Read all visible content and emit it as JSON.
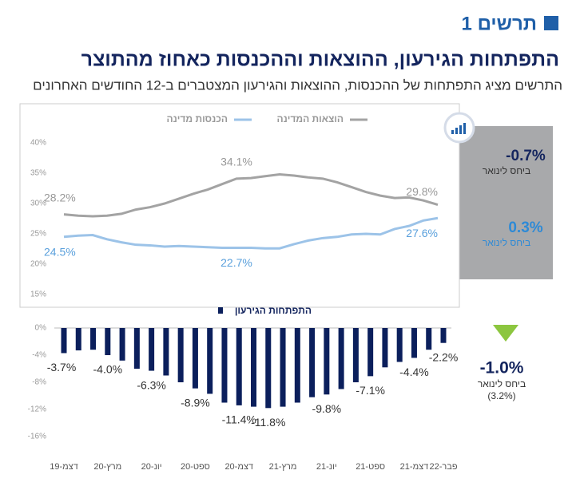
{
  "header": {
    "label": "תרשים 1",
    "title": "התפתחות הגירעון, ההוצאות וההכנסות כאחוז מהתוצר",
    "subtitle": "התרשים מציג התפתחות של ההכנסות, ההוצאות והגירעון המצטברים ב-12 החודשים האחרונים"
  },
  "side": {
    "expense_change": "-0.7%",
    "expense_note": "ביחס לינואר",
    "revenue_change": "0.3%",
    "revenue_note": "ביחס לינואר",
    "deficit_change": "-1.0%",
    "deficit_note": "ביחס לינואר",
    "deficit_prev": "(3.2%)"
  },
  "chart_data": [
    {
      "type": "line",
      "ylim": [
        15,
        40
      ],
      "yticks": [
        {
          "value": 15,
          "label": "15%"
        },
        {
          "value": 20,
          "label": "20%"
        },
        {
          "value": 25,
          "label": "25%"
        },
        {
          "value": 30,
          "label": "30%"
        },
        {
          "value": 35,
          "label": "35%"
        },
        {
          "value": 40,
          "label": "40%"
        }
      ],
      "series": [
        {
          "name": "הוצאות המדינה",
          "color": "#a3a3a3",
          "values": [
            28.2,
            28.0,
            27.9,
            28.0,
            28.3,
            29.0,
            29.4,
            30.0,
            30.8,
            31.6,
            32.3,
            33.2,
            34.1,
            34.2,
            34.5,
            34.8,
            34.6,
            34.3,
            34.1,
            33.5,
            32.7,
            31.9,
            31.3,
            30.9,
            31.0,
            30.5,
            29.8
          ],
          "value_labels": [
            "28.2%",
            null,
            null,
            null,
            null,
            null,
            null,
            null,
            null,
            null,
            null,
            null,
            "34.1%",
            null,
            null,
            null,
            null,
            null,
            null,
            null,
            null,
            null,
            null,
            null,
            null,
            null,
            "29.8%"
          ]
        },
        {
          "name": "הכנסות מדינה",
          "color": "#9cc3e8",
          "values": [
            24.5,
            24.7,
            24.8,
            24.1,
            23.6,
            23.2,
            23.1,
            22.9,
            23.0,
            22.9,
            22.8,
            22.7,
            22.7,
            22.7,
            22.6,
            22.6,
            23.3,
            23.9,
            24.3,
            24.5,
            24.9,
            25.0,
            24.9,
            25.8,
            26.3,
            27.2,
            27.6
          ],
          "value_labels": [
            "24.5%",
            null,
            null,
            null,
            null,
            null,
            null,
            null,
            null,
            null,
            null,
            null,
            "22.7%",
            null,
            null,
            null,
            null,
            null,
            null,
            null,
            null,
            null,
            null,
            null,
            null,
            null,
            "27.6%"
          ]
        }
      ]
    },
    {
      "type": "bar",
      "legend": "התפתחות הגירעון",
      "color": "#0b1f5c",
      "categories": [
        "19-דצמ",
        null,
        null,
        "20-מרץ",
        null,
        null,
        "20-יונ",
        null,
        null,
        "20-ספט",
        null,
        null,
        "20-דצמ",
        null,
        null,
        "21-מרץ",
        null,
        null,
        "21-יונ",
        null,
        null,
        "21-ספט",
        null,
        null,
        "21-דצמ",
        null,
        "22-פבר"
      ],
      "values": [
        -3.7,
        -3.3,
        -3.2,
        -4.0,
        -4.8,
        -6.0,
        -6.3,
        -7.0,
        -8.0,
        -8.9,
        -9.7,
        -11.0,
        -11.4,
        -11.6,
        -11.8,
        -11.6,
        -11.0,
        -10.2,
        -9.8,
        -9.0,
        -8.0,
        -7.1,
        -5.8,
        -5.0,
        -4.4,
        -3.2,
        -2.2
      ],
      "value_labels": [
        "-3.7%",
        null,
        null,
        "-4.0%",
        null,
        null,
        "-6.3%",
        null,
        null,
        "-8.9%",
        null,
        null,
        "-11.4%",
        null,
        "-11.8%",
        null,
        null,
        null,
        "-9.8%",
        null,
        null,
        "-7.1%",
        null,
        null,
        "-4.4%",
        null,
        "-2.2%"
      ],
      "ylim": [
        -16,
        0
      ],
      "yticks": [
        {
          "value": 0,
          "label": "0%"
        },
        {
          "value": -4,
          "label": "-4%"
        },
        {
          "value": -8,
          "label": "-8%"
        },
        {
          "value": -12,
          "label": "-12%"
        },
        {
          "value": -16,
          "label": "-16%"
        }
      ]
    }
  ]
}
